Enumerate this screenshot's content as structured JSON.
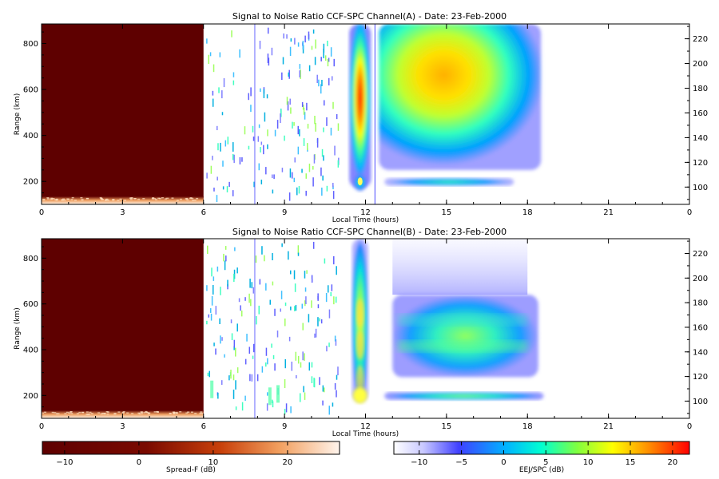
{
  "chart_data": [
    {
      "type": "heatmap",
      "title": "Signal to Noise Ratio CCF-SPC Channel(A) - Date: 23-Feb-2000",
      "xlabel": "Local Time (hours)",
      "ylabel": "Range (km)",
      "xlim": [
        0,
        24
      ],
      "ylim": [
        100,
        885
      ],
      "xticks": [
        "0",
        "3",
        "6",
        "9",
        "12",
        "15",
        "18",
        "21",
        "0"
      ],
      "yticks": [
        200,
        400,
        600,
        800
      ],
      "yticks_right": [
        100,
        120,
        140,
        160,
        180,
        200,
        220
      ],
      "regions": [
        {
          "series": "Spread-F",
          "x": [
            0,
            6
          ],
          "y": [
            100,
            885
          ],
          "value": -12
        },
        {
          "series": "EEJ/SPC",
          "x": [
            11.4,
            12.2
          ],
          "y": [
            170,
            885
          ],
          "value": 22
        },
        {
          "series": "EEJ/SPC",
          "x": [
            12.5,
            18.5
          ],
          "y": [
            250,
            885
          ],
          "value": 9
        },
        {
          "series": "EEJ/SPC",
          "x": [
            12.7,
            17.5
          ],
          "y": [
            180,
            215
          ],
          "value": 2
        }
      ]
    },
    {
      "type": "heatmap",
      "title": "Signal to Noise Ratio CCF-SPC Channel(B) - Date: 23-Feb-2000",
      "xlabel": "Local Time (hours)",
      "ylabel": "Range (km)",
      "xlim": [
        0,
        24
      ],
      "ylim": [
        100,
        885
      ],
      "xticks": [
        "0",
        "3",
        "6",
        "9",
        "12",
        "15",
        "18",
        "21",
        "0"
      ],
      "yticks": [
        200,
        400,
        600,
        800
      ],
      "yticks_right": [
        100,
        120,
        140,
        160,
        180,
        200,
        220
      ],
      "regions": [
        {
          "series": "Spread-F",
          "x": [
            0,
            6
          ],
          "y": [
            100,
            885
          ],
          "value": -12
        },
        {
          "series": "EEJ/SPC",
          "x": [
            11.5,
            12.1
          ],
          "y": [
            170,
            885
          ],
          "value": 8
        },
        {
          "series": "EEJ/SPC",
          "x": [
            13.0,
            18.4
          ],
          "y": [
            280,
            640
          ],
          "value": 3
        },
        {
          "series": "EEJ/SPC",
          "x": [
            12.7,
            18.6
          ],
          "y": [
            180,
            215
          ],
          "value": 5
        }
      ]
    }
  ],
  "colorbars": [
    {
      "label": "Spread-F (dB)",
      "ticks": [
        "-10",
        "0",
        "10",
        "20"
      ],
      "range": [
        -13,
        27
      ]
    },
    {
      "label": "EEJ/SPC (dB)",
      "ticks": [
        "-10",
        "-5",
        "0",
        "5",
        "10",
        "15",
        "20"
      ],
      "range": [
        -13,
        22
      ]
    }
  ]
}
